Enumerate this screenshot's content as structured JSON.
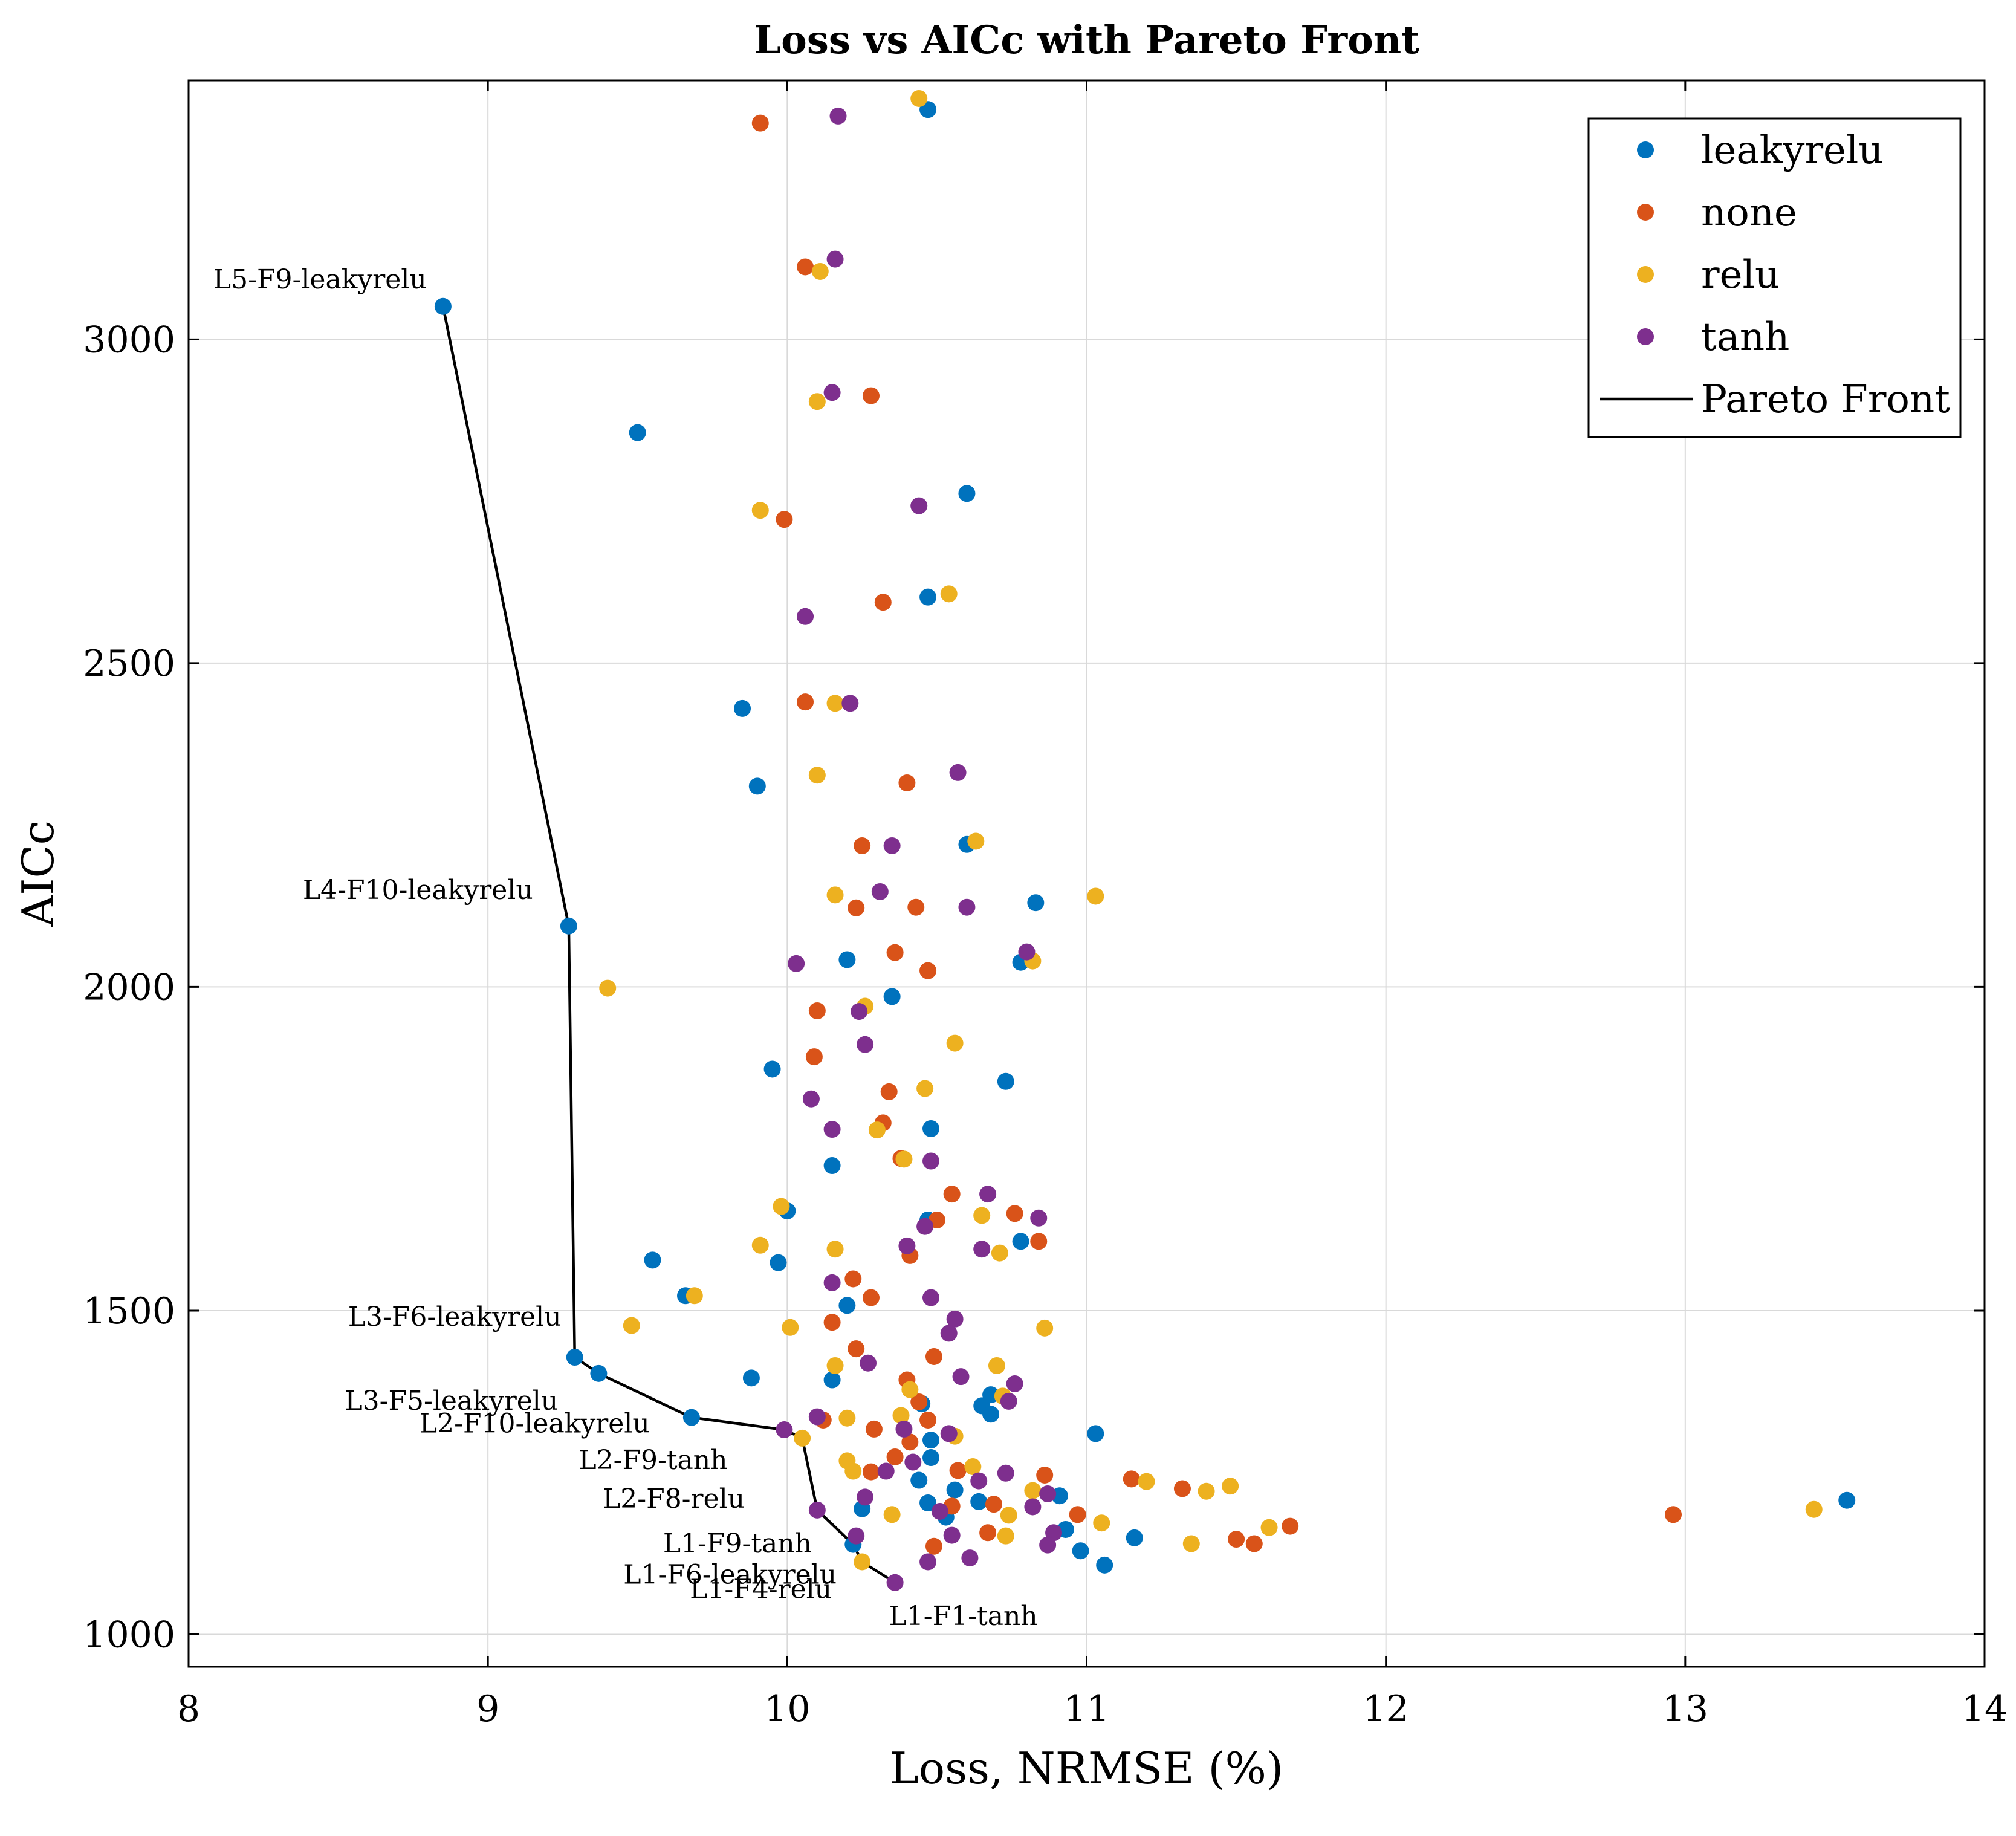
{
  "chart_data": {
    "type": "scatter",
    "title": "Loss vs AICc with Pareto Front",
    "xlabel": "Loss, NRMSE (%)",
    "ylabel": "AICc",
    "xlim": [
      8,
      14
    ],
    "ylim": [
      950,
      3400
    ],
    "xticks": [
      "8",
      "9",
      "10",
      "11",
      "12",
      "13",
      "14"
    ],
    "yticks": [
      "1000",
      "1500",
      "2000",
      "2500",
      "3000"
    ],
    "xtick_values": [
      8,
      9,
      10,
      11,
      12,
      13,
      14
    ],
    "ytick_values": [
      1000,
      1500,
      2000,
      2500,
      3000
    ],
    "grid": true,
    "legend_position": "top-right",
    "series": [
      {
        "name": "leakyrelu",
        "color": "#0072BD",
        "points": [
          [
            10.47,
            3355
          ],
          [
            8.85,
            3051
          ],
          [
            9.5,
            2856
          ],
          [
            10.6,
            2762
          ],
          [
            10.47,
            2602
          ],
          [
            9.85,
            2430
          ],
          [
            9.9,
            2310
          ],
          [
            10.6,
            2220
          ],
          [
            10.83,
            2130
          ],
          [
            10.2,
            2042
          ],
          [
            10.78,
            2038
          ],
          [
            9.27,
            2094
          ],
          [
            10.35,
            1985
          ],
          [
            9.95,
            1873
          ],
          [
            10.73,
            1854
          ],
          [
            10.48,
            1781
          ],
          [
            10.15,
            1724
          ],
          [
            10.0,
            1654
          ],
          [
            10.47,
            1640
          ],
          [
            9.55,
            1578
          ],
          [
            9.97,
            1574
          ],
          [
            10.78,
            1607
          ],
          [
            9.66,
            1523
          ],
          [
            10.2,
            1508
          ],
          [
            9.29,
            1428
          ],
          [
            9.37,
            1403
          ],
          [
            9.88,
            1396
          ],
          [
            10.15,
            1393
          ],
          [
            10.68,
            1370
          ],
          [
            10.45,
            1356
          ],
          [
            10.65,
            1353
          ],
          [
            9.68,
            1335
          ],
          [
            10.68,
            1340
          ],
          [
            11.03,
            1310
          ],
          [
            10.48,
            1300
          ],
          [
            10.48,
            1273
          ],
          [
            10.44,
            1238
          ],
          [
            10.56,
            1223
          ],
          [
            10.91,
            1214
          ],
          [
            10.47,
            1203
          ],
          [
            10.64,
            1205
          ],
          [
            10.25,
            1194
          ],
          [
            10.53,
            1181
          ],
          [
            10.93,
            1162
          ],
          [
            11.16,
            1149
          ],
          [
            10.22,
            1139
          ],
          [
            10.98,
            1129
          ],
          [
            11.06,
            1107
          ],
          [
            13.54,
            1207
          ]
        ]
      },
      {
        "name": "none",
        "color": "#D95319",
        "points": [
          [
            9.91,
            3334
          ],
          [
            10.06,
            3112
          ],
          [
            10.28,
            2913
          ],
          [
            9.99,
            2722
          ],
          [
            10.32,
            2594
          ],
          [
            10.06,
            2440
          ],
          [
            10.4,
            2315
          ],
          [
            10.25,
            2218
          ],
          [
            10.23,
            2122
          ],
          [
            10.43,
            2123
          ],
          [
            10.36,
            2053
          ],
          [
            10.47,
            2025
          ],
          [
            10.1,
            1963
          ],
          [
            10.09,
            1892
          ],
          [
            10.34,
            1838
          ],
          [
            10.32,
            1790
          ],
          [
            10.38,
            1735
          ],
          [
            10.55,
            1680
          ],
          [
            10.76,
            1650
          ],
          [
            10.5,
            1640
          ],
          [
            10.84,
            1607
          ],
          [
            10.41,
            1585
          ],
          [
            10.22,
            1549
          ],
          [
            10.28,
            1520
          ],
          [
            10.15,
            1482
          ],
          [
            10.23,
            1441
          ],
          [
            10.49,
            1429
          ],
          [
            10.4,
            1393
          ],
          [
            10.44,
            1359
          ],
          [
            10.47,
            1331
          ],
          [
            10.12,
            1331
          ],
          [
            10.29,
            1317
          ],
          [
            10.41,
            1297
          ],
          [
            10.36,
            1274
          ],
          [
            10.57,
            1253
          ],
          [
            10.28,
            1251
          ],
          [
            10.86,
            1246
          ],
          [
            11.15,
            1240
          ],
          [
            11.32,
            1225
          ],
          [
            10.55,
            1198
          ],
          [
            10.69,
            1201
          ],
          [
            10.97,
            1185
          ],
          [
            10.49,
            1136
          ],
          [
            10.67,
            1157
          ],
          [
            11.5,
            1147
          ],
          [
            11.56,
            1140
          ],
          [
            11.68,
            1167
          ],
          [
            12.96,
            1185
          ]
        ]
      },
      {
        "name": "relu",
        "color": "#EDB120",
        "points": [
          [
            10.44,
            3372
          ],
          [
            10.11,
            3105
          ],
          [
            10.1,
            2904
          ],
          [
            9.91,
            2736
          ],
          [
            10.54,
            2607
          ],
          [
            10.16,
            2438
          ],
          [
            10.1,
            2327
          ],
          [
            10.63,
            2225
          ],
          [
            10.16,
            2142
          ],
          [
            11.03,
            2140
          ],
          [
            10.82,
            2040
          ],
          [
            9.4,
            1998
          ],
          [
            10.26,
            1970
          ],
          [
            10.56,
            1913
          ],
          [
            10.46,
            1843
          ],
          [
            10.3,
            1779
          ],
          [
            10.39,
            1734
          ],
          [
            9.98,
            1661
          ],
          [
            10.65,
            1647
          ],
          [
            10.71,
            1589
          ],
          [
            9.91,
            1601
          ],
          [
            10.16,
            1595
          ],
          [
            9.69,
            1523
          ],
          [
            9.48,
            1477
          ],
          [
            10.01,
            1474
          ],
          [
            10.86,
            1473
          ],
          [
            10.16,
            1415
          ],
          [
            10.7,
            1415
          ],
          [
            10.41,
            1378
          ],
          [
            10.72,
            1368
          ],
          [
            10.2,
            1334
          ],
          [
            10.38,
            1338
          ],
          [
            10.05,
            1303
          ],
          [
            10.56,
            1306
          ],
          [
            10.2,
            1268
          ],
          [
            10.62,
            1259
          ],
          [
            10.22,
            1252
          ],
          [
            10.82,
            1222
          ],
          [
            11.2,
            1236
          ],
          [
            11.48,
            1229
          ],
          [
            11.4,
            1221
          ],
          [
            10.74,
            1184
          ],
          [
            10.35,
            1185
          ],
          [
            11.05,
            1172
          ],
          [
            11.61,
            1165
          ],
          [
            10.73,
            1152
          ],
          [
            11.35,
            1140
          ],
          [
            10.25,
            1112
          ],
          [
            13.43,
            1193
          ]
        ]
      },
      {
        "name": "tanh",
        "color": "#7E2F8E",
        "points": [
          [
            10.17,
            3345
          ],
          [
            10.16,
            3124
          ],
          [
            10.15,
            2918
          ],
          [
            10.44,
            2743
          ],
          [
            10.06,
            2572
          ],
          [
            10.21,
            2438
          ],
          [
            10.57,
            2331
          ],
          [
            10.35,
            2218
          ],
          [
            10.31,
            2147
          ],
          [
            10.6,
            2123
          ],
          [
            10.8,
            2054
          ],
          [
            10.03,
            2036
          ],
          [
            10.24,
            1962
          ],
          [
            10.26,
            1911
          ],
          [
            10.08,
            1827
          ],
          [
            10.15,
            1780
          ],
          [
            10.48,
            1731
          ],
          [
            10.67,
            1680
          ],
          [
            10.84,
            1643
          ],
          [
            10.46,
            1630
          ],
          [
            10.4,
            1600
          ],
          [
            10.65,
            1595
          ],
          [
            10.15,
            1543
          ],
          [
            10.48,
            1520
          ],
          [
            10.56,
            1487
          ],
          [
            10.54,
            1465
          ],
          [
            10.27,
            1419
          ],
          [
            10.58,
            1398
          ],
          [
            10.76,
            1387
          ],
          [
            10.74,
            1360
          ],
          [
            9.99,
            1316
          ],
          [
            10.1,
            1336
          ],
          [
            10.39,
            1317
          ],
          [
            10.54,
            1310
          ],
          [
            10.42,
            1266
          ],
          [
            10.33,
            1252
          ],
          [
            10.73,
            1249
          ],
          [
            10.64,
            1237
          ],
          [
            10.87,
            1217
          ],
          [
            10.26,
            1212
          ],
          [
            10.82,
            1197
          ],
          [
            10.1,
            1192
          ],
          [
            10.51,
            1190
          ],
          [
            10.89,
            1157
          ],
          [
            10.55,
            1153
          ],
          [
            10.23,
            1152
          ],
          [
            10.87,
            1138
          ],
          [
            10.47,
            1112
          ],
          [
            10.61,
            1118
          ],
          [
            10.36,
            1080
          ]
        ]
      }
    ],
    "pareto_front": {
      "name": "Pareto Front",
      "color": "#000000",
      "points": [
        [
          8.85,
          3051
        ],
        [
          9.27,
          2094
        ],
        [
          9.29,
          1428
        ],
        [
          9.37,
          1403
        ],
        [
          9.68,
          1335
        ],
        [
          9.99,
          1316
        ],
        [
          10.05,
          1303
        ],
        [
          10.1,
          1192
        ],
        [
          10.22,
          1139
        ],
        [
          10.25,
          1112
        ],
        [
          10.36,
          1080
        ]
      ]
    },
    "annotations": [
      {
        "text": "L5-F9-leakyrelu",
        "x": 8.85,
        "y": 3051
      },
      {
        "text": "L4-F10-leakyrelu",
        "x": 9.27,
        "y": 2094
      },
      {
        "text": "L3-F6-leakyrelu",
        "x": 9.29,
        "y": 1428
      },
      {
        "text": "L3-F5-leakyrelu",
        "x": 9.37,
        "y": 1403
      },
      {
        "text": "L2-F10-leakyrelu",
        "x": 9.68,
        "y": 1335
      },
      {
        "text": "L2-F9-tanh",
        "x": 9.99,
        "y": 1316
      },
      {
        "text": "L2-F8-relu",
        "x": 10.05,
        "y": 1303
      },
      {
        "text": "L1-F9-tanh",
        "x": 10.1,
        "y": 1192
      },
      {
        "text": "L1-F6-leakyrelu",
        "x": 10.22,
        "y": 1139
      },
      {
        "text": "L1-F4-relu",
        "x": 10.25,
        "y": 1112
      },
      {
        "text": "L1-F1-tanh",
        "x": 10.36,
        "y": 1080
      }
    ]
  }
}
